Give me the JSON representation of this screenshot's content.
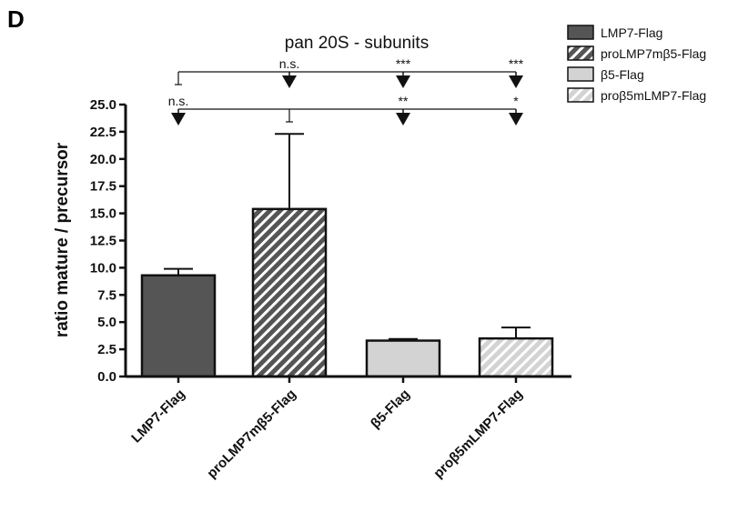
{
  "panel_label": "D",
  "chart_data": {
    "type": "bar",
    "title": "pan 20S - subunits",
    "xlabel": "",
    "ylabel": "ratio mature / precursor",
    "ylim": [
      0,
      25
    ],
    "yticks": [
      "0.0",
      "2.5",
      "5.0",
      "7.5",
      "10.0",
      "12.5",
      "15.0",
      "17.5",
      "20.0",
      "22.5",
      "25.0"
    ],
    "categories": [
      "LMP7-Flag",
      "proLMP7mβ5-Flag",
      "β5-Flag",
      "proβ5mLMP7-Flag"
    ],
    "values": [
      9.3,
      15.4,
      3.3,
      3.5
    ],
    "errors": [
      0.6,
      6.9,
      0.15,
      1.0
    ],
    "grid": false,
    "legend_position": "top-right",
    "legend": [
      {
        "label": "LMP7-Flag",
        "fill": "#555555",
        "pattern": "solid"
      },
      {
        "label": "proLMP7mβ5-Flag",
        "fill": "#555555",
        "pattern": "hatch"
      },
      {
        "label": "β5-Flag",
        "fill": "#d3d3d3",
        "pattern": "solid"
      },
      {
        "label": "proβ5mLMP7-Flag",
        "fill": "#d3d3d3",
        "pattern": "hatch"
      }
    ],
    "significance": [
      {
        "reference": 0,
        "labels": [
          "",
          "n.s.",
          "***",
          "***"
        ]
      },
      {
        "reference": 1,
        "labels": [
          "n.s.",
          "",
          "**",
          "*"
        ]
      }
    ]
  }
}
